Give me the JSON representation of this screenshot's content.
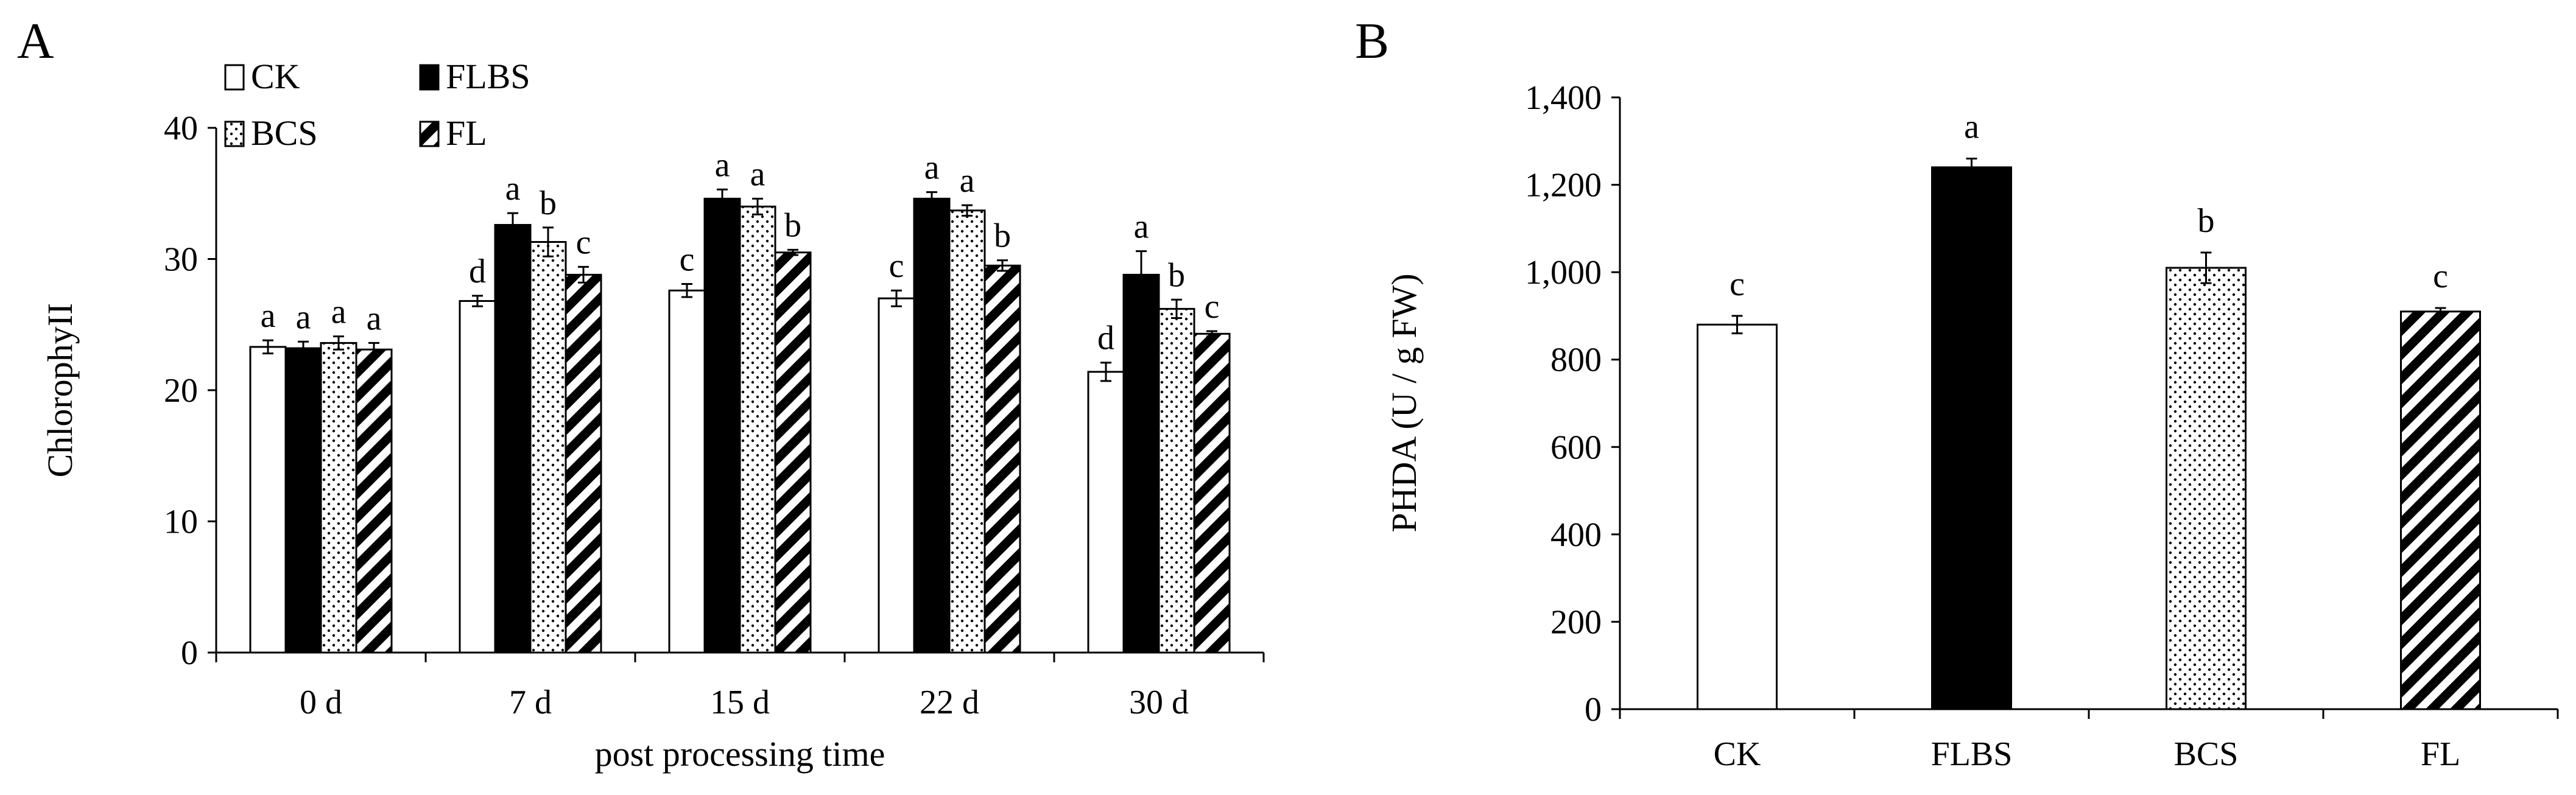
{
  "chart_data": [
    {
      "panel": "A",
      "type": "bar",
      "ylabel": "ChlorophyII",
      "xlabel": "post processing time",
      "ylim": [
        0,
        40
      ],
      "yticks": [
        "0",
        "10",
        "20",
        "30",
        "40"
      ],
      "categories": [
        "0 d",
        "7 d",
        "15 d",
        "22 d",
        "30 d"
      ],
      "legend": [
        "CK",
        "FLBS",
        "BCS",
        "FL"
      ],
      "legend_position": "top-left",
      "series": [
        {
          "name": "CK",
          "fill": "white",
          "values": [
            23.3,
            26.8,
            27.6,
            27.0,
            21.4
          ],
          "errors": [
            0.5,
            0.4,
            0.5,
            0.6,
            0.7
          ],
          "letters": [
            "a",
            "d",
            "c",
            "c",
            "d"
          ]
        },
        {
          "name": "FLBS",
          "fill": "black",
          "values": [
            23.2,
            32.6,
            34.6,
            34.6,
            28.8
          ],
          "errors": [
            0.5,
            0.9,
            0.7,
            0.5,
            1.8
          ],
          "letters": [
            "a",
            "a",
            "a",
            "a",
            "a"
          ]
        },
        {
          "name": "BCS",
          "fill": "dots",
          "values": [
            23.6,
            31.3,
            34.0,
            33.7,
            26.2
          ],
          "errors": [
            0.5,
            1.1,
            0.6,
            0.4,
            0.7
          ],
          "letters": [
            "a",
            "b",
            "a",
            "a",
            "b"
          ]
        },
        {
          "name": "FL",
          "fill": "hatch",
          "values": [
            23.1,
            28.8,
            30.5,
            29.5,
            24.3
          ],
          "errors": [
            0.5,
            0.6,
            0.2,
            0.4,
            0.2
          ],
          "letters": [
            "a",
            "c",
            "b",
            "b",
            "c"
          ]
        }
      ]
    },
    {
      "panel": "B",
      "type": "bar",
      "ylabel": "PHDA (U / g FW)",
      "xlabel": "",
      "ylim": [
        0,
        1400
      ],
      "yticks": [
        "0",
        "200",
        "400",
        "600",
        "800",
        "1,000",
        "1,200",
        "1,400"
      ],
      "categories": [
        "CK",
        "FLBS",
        "BCS",
        "FL"
      ],
      "fills": [
        "white",
        "black",
        "dots",
        "hatch"
      ],
      "values": [
        880,
        1240,
        1010,
        910
      ],
      "errors": [
        20,
        20,
        35,
        8
      ],
      "letters": [
        "c",
        "a",
        "b",
        "c"
      ]
    }
  ]
}
